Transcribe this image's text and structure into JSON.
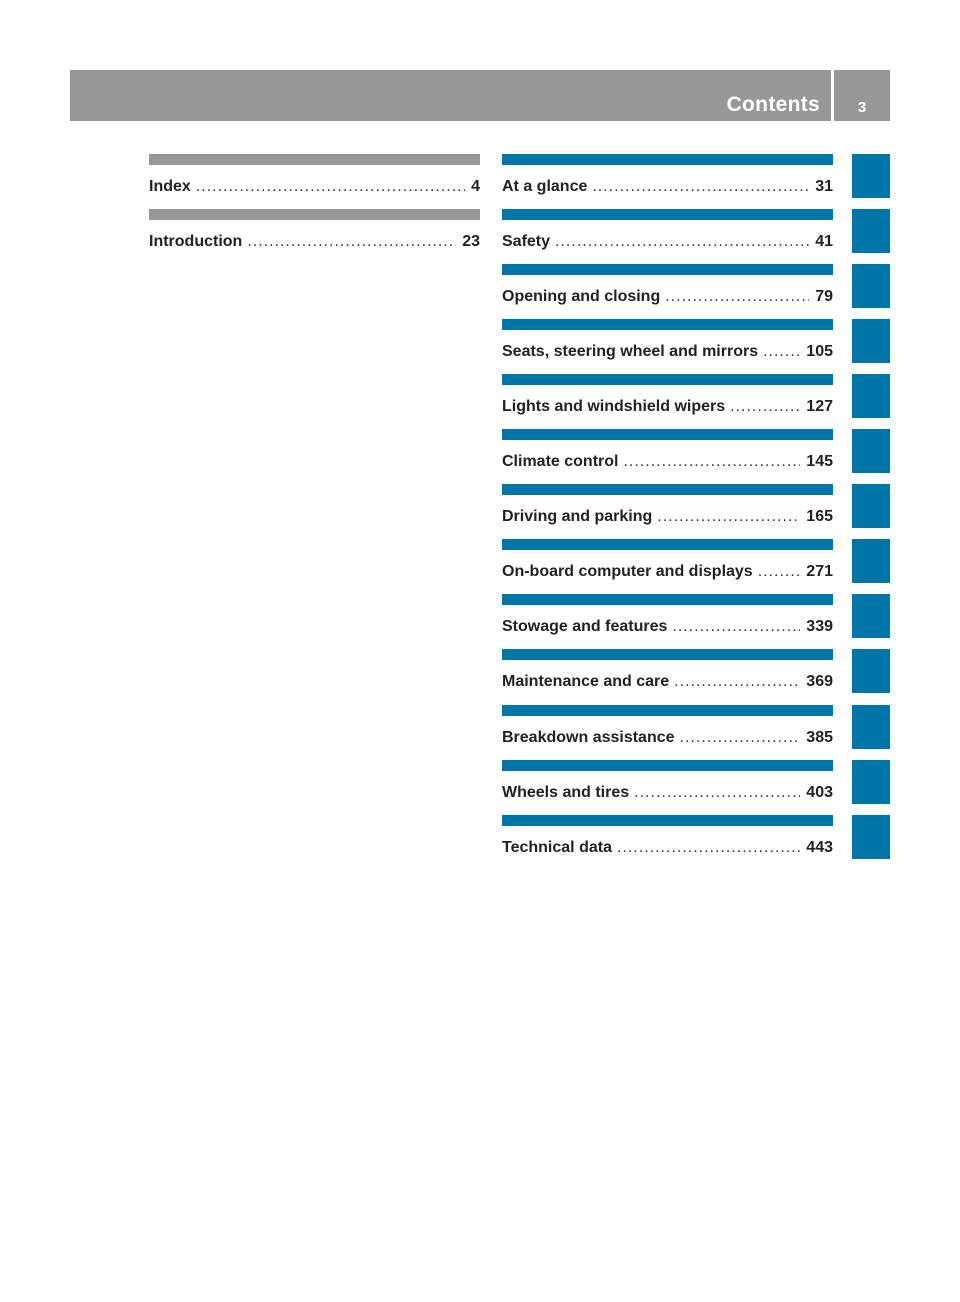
{
  "header": {
    "title": "Contents",
    "page_number": "3"
  },
  "left_entries": [
    {
      "label": "Index",
      "page": "4"
    },
    {
      "label": "Introduction",
      "page": "23"
    }
  ],
  "right_entries": [
    {
      "label": "At a glance",
      "page": "31"
    },
    {
      "label": "Safety",
      "page": "41"
    },
    {
      "label": "Opening and closing",
      "page": "79"
    },
    {
      "label": "Seats, steering wheel and mirrors",
      "page": "105"
    },
    {
      "label": "Lights and windshield wipers",
      "page": "127"
    },
    {
      "label": "Climate control",
      "page": "145"
    },
    {
      "label": "Driving and parking",
      "page": "165"
    },
    {
      "label": "On-board computer and displays",
      "page": "271"
    },
    {
      "label": "Stowage and features",
      "page": "339"
    },
    {
      "label": "Maintenance and care",
      "page": "369"
    },
    {
      "label": "Breakdown assistance",
      "page": "385"
    },
    {
      "label": "Wheels and tires",
      "page": "403"
    },
    {
      "label": "Technical data",
      "page": "443"
    }
  ],
  "colors": {
    "accent_blue": "#0076a8",
    "header_grey": "#989898"
  },
  "dot_leader": "................................................................................................................"
}
